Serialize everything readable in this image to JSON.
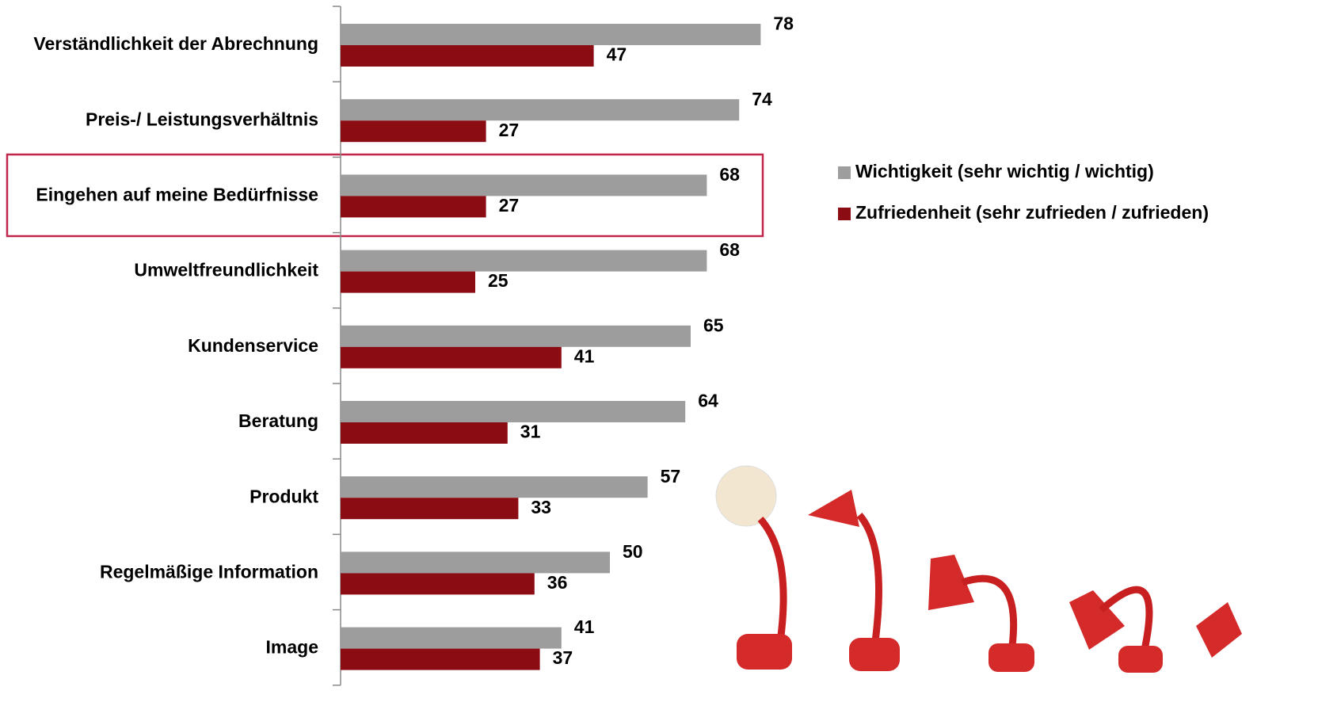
{
  "chart_data": {
    "type": "bar",
    "orientation": "horizontal",
    "categories": [
      "Verständlichkeit der Abrechnung",
      "Preis-/ Leistungsverhältnis",
      "Eingehen auf meine Bedürfnisse",
      "Umweltfreundlichkeit",
      "Kundenservice",
      "Beratung",
      "Produkt",
      "Regelmäßige Information",
      "Image"
    ],
    "series": [
      {
        "name": "Wichtigkeit (sehr wichtig / wichtig)",
        "color": "#9d9d9d",
        "values": [
          78,
          74,
          68,
          68,
          65,
          64,
          57,
          50,
          41
        ]
      },
      {
        "name": "Zufriedenheit (sehr zufrieden / zufrieden)",
        "color": "#8b0c13",
        "values": [
          47,
          27,
          27,
          25,
          41,
          31,
          33,
          36,
          37
        ]
      }
    ],
    "xlim": [
      0,
      100
    ],
    "legend": "right"
  }
}
